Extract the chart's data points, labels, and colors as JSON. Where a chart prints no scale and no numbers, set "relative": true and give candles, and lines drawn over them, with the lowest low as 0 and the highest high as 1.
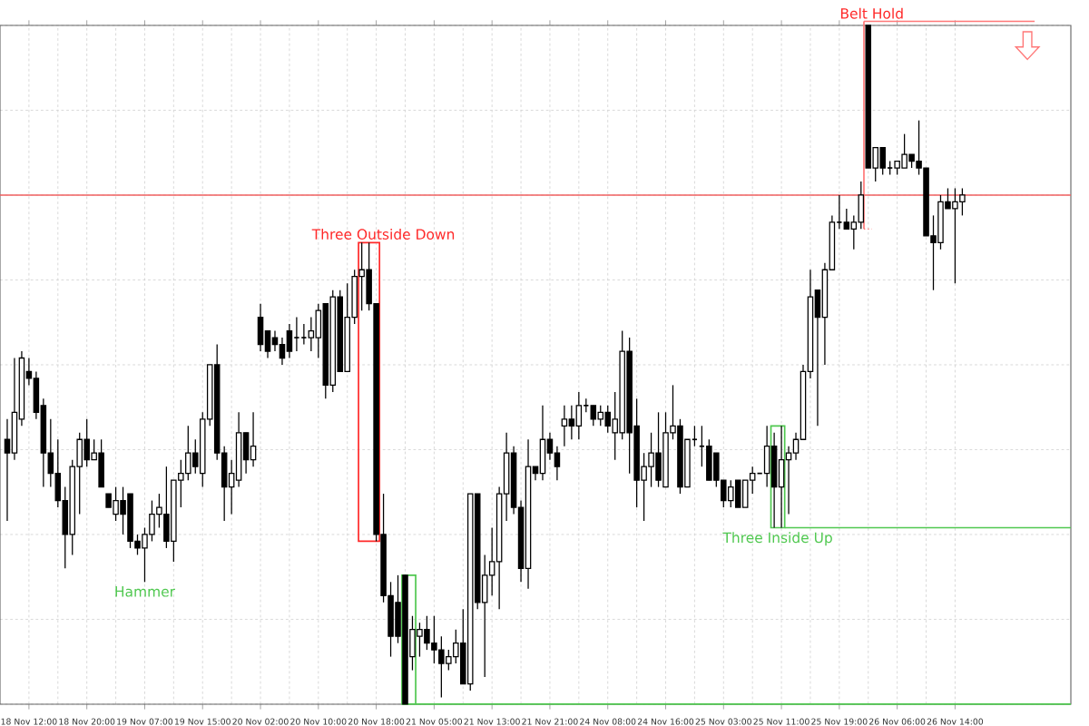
{
  "chart_data": {
    "type": "candlestick",
    "relative": true,
    "grid": true,
    "categories": [
      null,
      null,
      null,
      "18 Nov 12:00",
      null,
      null,
      null,
      null,
      null,
      null,
      null,
      "18 Nov 20:00",
      null,
      null,
      null,
      null,
      null,
      null,
      null,
      "19 Nov 07:00",
      null,
      null,
      null,
      null,
      null,
      null,
      null,
      "19 Nov 15:00",
      null,
      null,
      null,
      null,
      null,
      null,
      null,
      "20 Nov 02:00",
      null,
      null,
      null,
      null,
      null,
      null,
      null,
      "20 Nov 10:00",
      null,
      null,
      null,
      null,
      null,
      null,
      null,
      "20 Nov 18:00",
      null,
      null,
      null,
      null,
      null,
      null,
      null,
      "21 Nov 05:00",
      null,
      null,
      null,
      null,
      null,
      null,
      null,
      "21 Nov 13:00",
      null,
      null,
      null,
      null,
      null,
      null,
      null,
      "21 Nov 21:00",
      null,
      null,
      null,
      null,
      null,
      null,
      null,
      "24 Nov 08:00",
      null,
      null,
      null,
      null,
      null,
      null,
      null,
      "24 Nov 16:00",
      null,
      null,
      null,
      null,
      null,
      null,
      null,
      "25 Nov 03:00",
      null,
      null,
      null,
      null,
      null,
      null,
      null,
      "25 Nov 11:00",
      null,
      null,
      null,
      null,
      null,
      null,
      null,
      "25 Nov 19:00",
      null,
      null,
      null,
      null,
      null,
      null,
      null,
      "26 Nov 06:00",
      null,
      null,
      null,
      null,
      null,
      null,
      null,
      "26 Nov 14:00",
      null
    ],
    "ohlc": [
      [
        0.39,
        0.42,
        0.27,
        0.37
      ],
      [
        0.37,
        0.51,
        0.36,
        0.43
      ],
      [
        0.42,
        0.52,
        0.41,
        0.51
      ],
      [
        0.49,
        0.51,
        0.47,
        0.48
      ],
      [
        0.48,
        0.49,
        0.42,
        0.43
      ],
      [
        0.44,
        0.45,
        0.32,
        0.37
      ],
      [
        0.37,
        0.42,
        0.32,
        0.34
      ],
      [
        0.34,
        0.39,
        0.29,
        0.3
      ],
      [
        0.3,
        0.32,
        0.2,
        0.25
      ],
      [
        0.25,
        0.36,
        0.22,
        0.35
      ],
      [
        0.35,
        0.4,
        0.28,
        0.39
      ],
      [
        0.39,
        0.42,
        0.35,
        0.36
      ],
      [
        0.36,
        0.39,
        0.36,
        0.37
      ],
      [
        0.37,
        0.39,
        0.32,
        0.32
      ],
      [
        0.31,
        0.31,
        0.29,
        0.29
      ],
      [
        0.28,
        0.32,
        0.27,
        0.3
      ],
      [
        0.3,
        0.32,
        0.25,
        0.28
      ],
      [
        0.31,
        0.31,
        0.23,
        0.24
      ],
      [
        0.24,
        0.25,
        0.22,
        0.23
      ],
      [
        0.23,
        0.26,
        0.18,
        0.25
      ],
      [
        0.25,
        0.3,
        0.24,
        0.28
      ],
      [
        0.28,
        0.31,
        0.26,
        0.29
      ],
      [
        0.28,
        0.35,
        0.23,
        0.24
      ],
      [
        0.24,
        0.33,
        0.21,
        0.33
      ],
      [
        0.33,
        0.36,
        0.29,
        0.34
      ],
      [
        0.34,
        0.41,
        0.33,
        0.37
      ],
      [
        0.37,
        0.39,
        0.34,
        0.35
      ],
      [
        0.34,
        0.43,
        0.32,
        0.42
      ],
      [
        0.42,
        0.5,
        0.41,
        0.5
      ],
      [
        0.5,
        0.53,
        0.36,
        0.37
      ],
      [
        0.37,
        0.38,
        0.27,
        0.32
      ],
      [
        0.32,
        0.36,
        0.28,
        0.34
      ],
      [
        0.33,
        0.43,
        0.32,
        0.4
      ],
      [
        0.4,
        0.4,
        0.34,
        0.36
      ],
      [
        0.36,
        0.43,
        0.35,
        0.38
      ],
      [
        0.57,
        0.59,
        0.52,
        0.53
      ],
      [
        0.55,
        0.55,
        0.51,
        0.52
      ],
      [
        0.54,
        0.55,
        0.52,
        0.53
      ],
      [
        0.53,
        0.54,
        0.5,
        0.51
      ],
      [
        0.55,
        0.56,
        0.51,
        0.52
      ],
      [
        0.54,
        0.57,
        0.52,
        0.54
      ],
      [
        0.54,
        0.56,
        0.53,
        0.54
      ],
      [
        0.54,
        0.57,
        0.52,
        0.55
      ],
      [
        0.54,
        0.59,
        0.51,
        0.58
      ],
      [
        0.59,
        0.59,
        0.45,
        0.47
      ],
      [
        0.47,
        0.61,
        0.46,
        0.6
      ],
      [
        0.6,
        0.61,
        0.49,
        0.49
      ],
      [
        0.49,
        0.62,
        0.49,
        0.57
      ],
      [
        0.57,
        0.64,
        0.56,
        0.63
      ],
      [
        0.63,
        0.68,
        0.58,
        0.64
      ],
      [
        0.64,
        0.68,
        0.58,
        0.59
      ],
      [
        0.59,
        0.59,
        0.24,
        0.25
      ],
      [
        0.25,
        0.31,
        0.15,
        0.16
      ],
      [
        0.16,
        0.18,
        0.07,
        0.1
      ],
      [
        0.15,
        0.19,
        0.09,
        0.1
      ],
      [
        0.19,
        0.19,
        0,
        0.0
      ],
      [
        0.07,
        0.13,
        0.05,
        0.11
      ],
      [
        0.1,
        0.12,
        0.07,
        0.11
      ],
      [
        0.11,
        0.13,
        0.08,
        0.09
      ],
      [
        0.09,
        0.13,
        0.06,
        0.08
      ],
      [
        0.08,
        0.1,
        0.01,
        0.06
      ],
      [
        0.06,
        0.08,
        0.05,
        0.07
      ],
      [
        0.07,
        0.11,
        0.06,
        0.09
      ],
      [
        0.09,
        0.14,
        0.03,
        0.03
      ],
      [
        0.03,
        0.31,
        0.02,
        0.31
      ],
      [
        0.31,
        0.31,
        0.14,
        0.15
      ],
      [
        0.15,
        0.22,
        0.04,
        0.19
      ],
      [
        0.19,
        0.26,
        0.16,
        0.21
      ],
      [
        0.21,
        0.32,
        0.14,
        0.31
      ],
      [
        0.31,
        0.4,
        0.27,
        0.37
      ],
      [
        0.37,
        0.38,
        0.28,
        0.29
      ],
      [
        0.29,
        0.3,
        0.18,
        0.2
      ],
      [
        0.2,
        0.39,
        0.17,
        0.35
      ],
      [
        0.35,
        0.35,
        0.33,
        0.34
      ],
      [
        0.34,
        0.44,
        0.33,
        0.39
      ],
      [
        0.39,
        0.4,
        0.36,
        0.37
      ],
      [
        0.37,
        0.38,
        0.33,
        0.35
      ],
      [
        0.41,
        0.44,
        0.38,
        0.42
      ],
      [
        0.42,
        0.44,
        0.39,
        0.41
      ],
      [
        0.41,
        0.46,
        0.39,
        0.44
      ],
      [
        0.44,
        0.45,
        0.43,
        0.44
      ],
      [
        0.44,
        0.44,
        0.41,
        0.42
      ],
      [
        0.42,
        0.44,
        0.41,
        0.43
      ],
      [
        0.43,
        0.44,
        0.4,
        0.41
      ],
      [
        0.4,
        0.46,
        0.36,
        0.42
      ],
      [
        0.4,
        0.55,
        0.39,
        0.52
      ],
      [
        0.52,
        0.54,
        0.34,
        0.4
      ],
      [
        0.41,
        0.45,
        0.29,
        0.33
      ],
      [
        0.33,
        0.37,
        0.27,
        0.35
      ],
      [
        0.35,
        0.4,
        0.32,
        0.37
      ],
      [
        0.37,
        0.43,
        0.32,
        0.33
      ],
      [
        0.32,
        0.43,
        0.32,
        0.4
      ],
      [
        0.4,
        0.47,
        0.39,
        0.41
      ],
      [
        0.41,
        0.42,
        0.31,
        0.32
      ],
      [
        0.32,
        0.39,
        0.32,
        0.39
      ],
      [
        0.39,
        0.41,
        0.38,
        0.39
      ],
      [
        0.38,
        0.41,
        0.35,
        0.38
      ],
      [
        0.38,
        0.39,
        0.33,
        0.33
      ],
      [
        0.37,
        0.37,
        0.32,
        0.33
      ],
      [
        0.33,
        0.33,
        0.29,
        0.3
      ],
      [
        0.3,
        0.33,
        0.29,
        0.32
      ],
      [
        0.33,
        0.33,
        0.29,
        0.29
      ],
      [
        0.29,
        0.33,
        0.29,
        0.33
      ],
      [
        0.33,
        0.35,
        0.31,
        0.34
      ],
      [
        0.34,
        0.34,
        0.34,
        0.34
      ],
      [
        0.34,
        0.41,
        0.32,
        0.38
      ],
      [
        0.38,
        0.4,
        0.26,
        0.32
      ],
      [
        0.32,
        0.41,
        0.26,
        0.36
      ],
      [
        0.36,
        0.38,
        0.28,
        0.37
      ],
      [
        0.37,
        0.4,
        0.36,
        0.39
      ],
      [
        0.39,
        0.5,
        0.39,
        0.49
      ],
      [
        0.49,
        0.64,
        0.48,
        0.6
      ],
      [
        0.61,
        0.61,
        0.41,
        0.57
      ],
      [
        0.57,
        0.65,
        0.5,
        0.64
      ],
      [
        0.64,
        0.72,
        0.64,
        0.71
      ],
      [
        0.71,
        0.75,
        0.7,
        0.71
      ],
      [
        0.71,
        0.73,
        0.7,
        0.7
      ],
      [
        0.7,
        0.72,
        0.67,
        0.71
      ],
      [
        0.71,
        0.77,
        0.7,
        0.75
      ],
      [
        1,
        1,
        0.79,
        0.79
      ],
      [
        0.79,
        0.82,
        0.77,
        0.82
      ],
      [
        0.82,
        0.82,
        0.78,
        0.79
      ],
      [
        0.79,
        0.8,
        0.78,
        0.79
      ],
      [
        0.79,
        0.8,
        0.78,
        0.8
      ],
      [
        0.79,
        0.84,
        0.79,
        0.81
      ],
      [
        0.81,
        0.81,
        0.79,
        0.8
      ],
      [
        0.8,
        0.86,
        0.78,
        0.79
      ],
      [
        0.79,
        0.79,
        0.69,
        0.69
      ],
      [
        0.69,
        0.72,
        0.61,
        0.68
      ],
      [
        0.68,
        0.75,
        0.67,
        0.74
      ],
      [
        0.74,
        0.76,
        0.73,
        0.73
      ],
      [
        0.73,
        0.76,
        0.62,
        0.74
      ],
      [
        0.74,
        0.76,
        0.72,
        0.75
      ]
    ],
    "ref_lines": [
      {
        "axis": "y",
        "value": 0.75,
        "color": "#f06060"
      }
    ],
    "annotations": [
      "Three Outside Down",
      "Hammer",
      "Three Inside Up",
      {
        "text": "Belt Hold",
        "y": 1
      }
    ]
  }
}
